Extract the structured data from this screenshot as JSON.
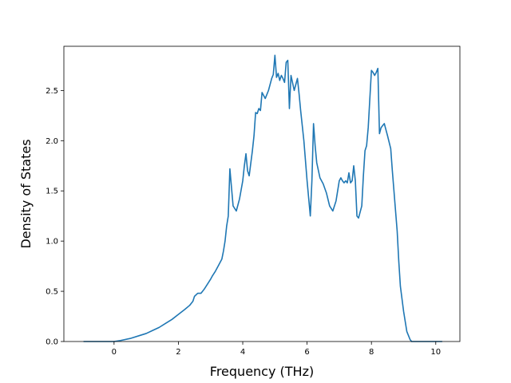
{
  "chart_data": {
    "type": "line",
    "title": "",
    "xlabel": "Frequency (THz)",
    "ylabel": "Density of States",
    "xlim": [
      -1.56,
      10.75
    ],
    "ylim": [
      0,
      2.94
    ],
    "xticks": [
      0,
      2,
      4,
      6,
      8,
      10
    ],
    "xtick_labels": [
      "0",
      "2",
      "4",
      "6",
      "8",
      "10"
    ],
    "yticks": [
      0,
      0.5,
      1.0,
      1.5,
      2.0,
      2.5
    ],
    "ytick_labels": [
      "0.0",
      "0.5",
      "1.0",
      "1.5",
      "2.0",
      "2.5"
    ],
    "grid": false,
    "legend": "none",
    "line_color": "#1f77b4",
    "series": [
      {
        "x": [
          -0.95,
          -0.4,
          0,
          0.2,
          0.5,
          0.8,
          1.0,
          1.2,
          1.4,
          1.6,
          1.8,
          2.0,
          2.2,
          2.35,
          2.45,
          2.5,
          2.6,
          2.7,
          2.8,
          2.9,
          3.0,
          3.05,
          3.15,
          3.25,
          3.35,
          3.4,
          3.45,
          3.5,
          3.55,
          3.6,
          3.7,
          3.8,
          3.9,
          4.0,
          4.05,
          4.1,
          4.15,
          4.2,
          4.3,
          4.35,
          4.4,
          4.45,
          4.5,
          4.55,
          4.6,
          4.7,
          4.8,
          4.9,
          4.95,
          5.0,
          5.05,
          5.1,
          5.15,
          5.2,
          5.25,
          5.3,
          5.35,
          5.4,
          5.45,
          5.5,
          5.6,
          5.7,
          5.75,
          5.8,
          5.85,
          5.9,
          6.0,
          6.1,
          6.15,
          6.2,
          6.25,
          6.3,
          6.4,
          6.5,
          6.6,
          6.7,
          6.8,
          6.9,
          7.0,
          7.05,
          7.1,
          7.15,
          7.2,
          7.25,
          7.3,
          7.35,
          7.4,
          7.45,
          7.5,
          7.55,
          7.6,
          7.7,
          7.75,
          7.8,
          7.85,
          7.9,
          8.0,
          8.05,
          8.1,
          8.15,
          8.2,
          8.25,
          8.3,
          8.35,
          8.4,
          8.5,
          8.6,
          8.65,
          8.7,
          8.8,
          8.85,
          8.9,
          9.0,
          9.1,
          9.2,
          9.25,
          9.3,
          9.35,
          10.2
        ],
        "y": [
          0,
          0,
          0,
          0.01,
          0.03,
          0.06,
          0.08,
          0.11,
          0.14,
          0.18,
          0.22,
          0.27,
          0.32,
          0.36,
          0.4,
          0.45,
          0.48,
          0.48,
          0.52,
          0.57,
          0.62,
          0.65,
          0.7,
          0.76,
          0.82,
          0.9,
          1.0,
          1.15,
          1.25,
          1.72,
          1.35,
          1.3,
          1.42,
          1.6,
          1.75,
          1.87,
          1.7,
          1.65,
          1.9,
          2.05,
          2.28,
          2.27,
          2.32,
          2.3,
          2.48,
          2.42,
          2.5,
          2.62,
          2.66,
          2.85,
          2.63,
          2.67,
          2.6,
          2.65,
          2.62,
          2.58,
          2.78,
          2.8,
          2.32,
          2.65,
          2.5,
          2.62,
          2.47,
          2.3,
          2.15,
          2.0,
          1.6,
          1.25,
          1.6,
          2.17,
          1.95,
          1.78,
          1.63,
          1.57,
          1.48,
          1.35,
          1.3,
          1.4,
          1.6,
          1.63,
          1.6,
          1.58,
          1.6,
          1.58,
          1.68,
          1.58,
          1.6,
          1.75,
          1.6,
          1.25,
          1.23,
          1.35,
          1.65,
          1.9,
          1.95,
          2.13,
          2.7,
          2.68,
          2.65,
          2.68,
          2.72,
          2.07,
          2.13,
          2.15,
          2.17,
          2.05,
          1.92,
          1.7,
          1.5,
          1.1,
          0.8,
          0.55,
          0.3,
          0.1,
          0.02,
          0,
          0,
          0,
          0
        ]
      }
    ]
  }
}
